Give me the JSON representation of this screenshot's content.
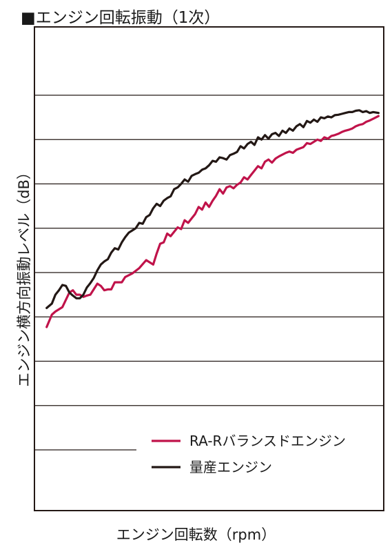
{
  "chart_data": {
    "type": "line",
    "title": "■エンジン回転振動（1次）",
    "xlabel": "エンジン回転数（rpm）",
    "ylabel": "エンジン横方向振動レベル（dB）",
    "xlim": [
      0,
      100
    ],
    "ylim": [
      0,
      8
    ],
    "grid": "horizontal",
    "legend_position": "bottom-right",
    "x_ticks_labeled": false,
    "y_ticks_labeled": false,
    "series": [
      {
        "name": "RA-Rバランスドエンジン",
        "color": "#c0134a",
        "x": [
          3.5,
          5,
          6,
          8,
          10,
          11,
          12,
          13,
          14,
          15,
          16,
          18,
          19,
          20,
          21,
          22,
          23,
          25,
          26,
          28,
          30,
          32,
          34,
          35,
          36,
          37,
          38,
          39,
          40,
          41,
          42,
          43,
          44,
          45,
          46,
          47,
          48,
          49,
          50,
          51,
          52,
          53,
          54,
          55,
          56,
          57,
          58,
          59,
          60,
          61,
          62,
          63,
          64,
          65,
          66,
          67,
          68,
          69,
          70,
          71,
          72,
          73,
          74,
          75,
          76,
          77,
          78,
          79,
          80,
          81,
          82,
          83,
          84,
          85,
          86,
          87,
          88,
          89,
          90,
          91,
          92,
          93,
          94,
          95,
          96,
          97,
          98.5
        ],
        "values": [
          2.77,
          3.05,
          3.12,
          3.22,
          3.55,
          3.6,
          3.5,
          3.5,
          3.45,
          3.48,
          3.5,
          3.75,
          3.7,
          3.6,
          3.62,
          3.62,
          3.78,
          3.78,
          3.9,
          3.98,
          4.1,
          4.28,
          4.18,
          4.43,
          4.65,
          4.68,
          4.88,
          4.82,
          4.92,
          5.02,
          4.98,
          5.18,
          5.12,
          5.22,
          5.32,
          5.48,
          5.42,
          5.58,
          5.48,
          5.62,
          5.73,
          5.88,
          5.78,
          5.92,
          5.95,
          5.9,
          5.98,
          6.03,
          6.15,
          6.1,
          6.2,
          6.3,
          6.4,
          6.35,
          6.5,
          6.55,
          6.48,
          6.57,
          6.62,
          6.66,
          6.7,
          6.73,
          6.7,
          6.77,
          6.8,
          6.83,
          6.92,
          6.9,
          6.95,
          7.0,
          6.97,
          7.05,
          7.02,
          7.08,
          7.1,
          7.13,
          7.17,
          7.2,
          7.22,
          7.25,
          7.3,
          7.33,
          7.35,
          7.4,
          7.43,
          7.47,
          7.53
        ]
      },
      {
        "name": "量産エンジン",
        "color": "#231815",
        "x": [
          3.5,
          5,
          6,
          7,
          8,
          9,
          10,
          11,
          12,
          13,
          14,
          15,
          16,
          17,
          18,
          19,
          20,
          21,
          22,
          23,
          24,
          25,
          26,
          27,
          28,
          29,
          30,
          31,
          32,
          33,
          34,
          35,
          36,
          37,
          38,
          39,
          40,
          41,
          42,
          43,
          44,
          45,
          46,
          47,
          48,
          49,
          50,
          51,
          52,
          53,
          54,
          55,
          56,
          57,
          58,
          59,
          60,
          61,
          62,
          63,
          64,
          65,
          66,
          67,
          68,
          69,
          70,
          71,
          72,
          73,
          74,
          75,
          76,
          77,
          78,
          79,
          80,
          81,
          82,
          83,
          84,
          85,
          86,
          87,
          88,
          89,
          90,
          91,
          92,
          93,
          94,
          95,
          96,
          97,
          98.5
        ],
        "values": [
          3.2,
          3.3,
          3.5,
          3.6,
          3.72,
          3.7,
          3.55,
          3.48,
          3.42,
          3.42,
          3.5,
          3.66,
          3.76,
          3.88,
          4.05,
          4.18,
          4.25,
          4.3,
          4.45,
          4.55,
          4.52,
          4.68,
          4.8,
          4.9,
          4.95,
          5.0,
          5.12,
          5.1,
          5.25,
          5.3,
          5.45,
          5.55,
          5.5,
          5.62,
          5.68,
          5.72,
          5.88,
          5.92,
          6.0,
          6.1,
          6.05,
          6.18,
          6.22,
          6.25,
          6.32,
          6.35,
          6.42,
          6.52,
          6.5,
          6.6,
          6.58,
          6.55,
          6.65,
          6.68,
          6.72,
          6.85,
          6.8,
          6.9,
          6.95,
          6.88,
          7.05,
          7.0,
          7.1,
          7.02,
          7.12,
          7.15,
          7.08,
          7.2,
          7.15,
          7.25,
          7.2,
          7.3,
          7.35,
          7.28,
          7.42,
          7.38,
          7.45,
          7.4,
          7.5,
          7.48,
          7.52,
          7.5,
          7.55,
          7.56,
          7.58,
          7.6,
          7.62,
          7.62,
          7.65,
          7.66,
          7.62,
          7.64,
          7.6,
          7.62,
          7.6
        ]
      }
    ]
  }
}
